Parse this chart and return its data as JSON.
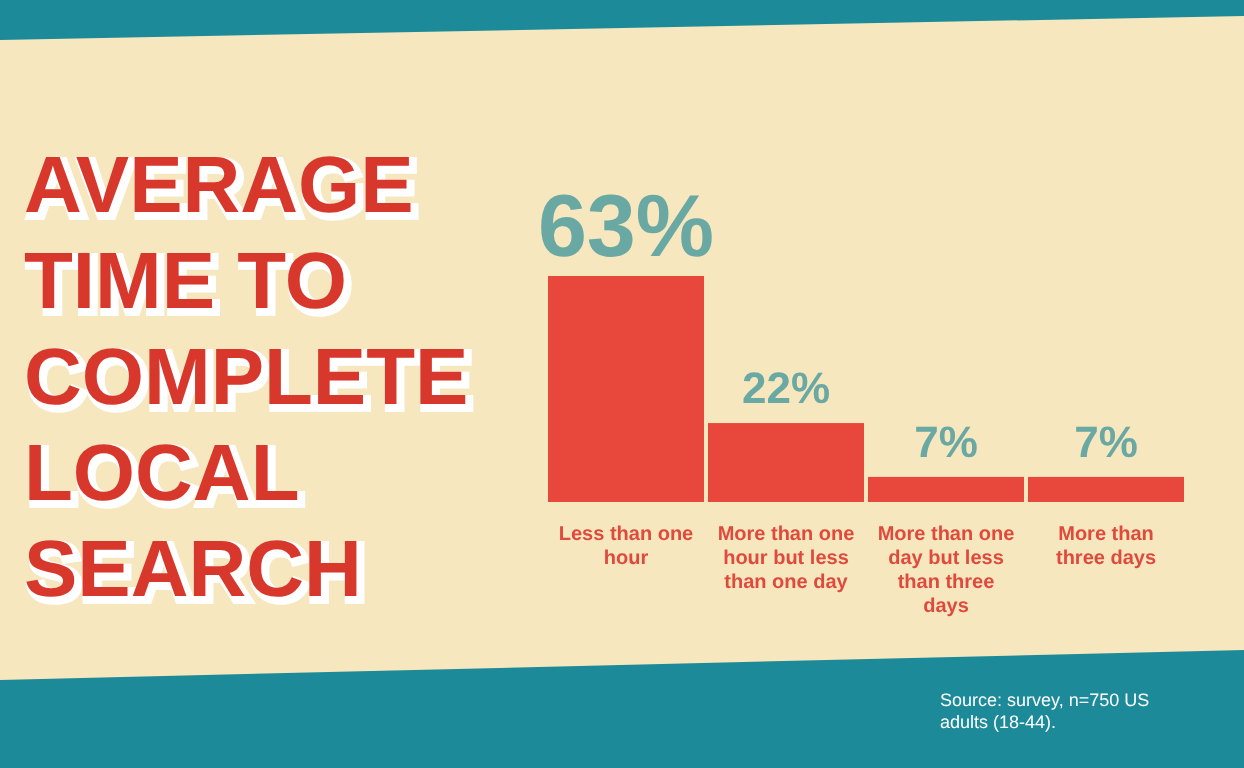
{
  "chart_data": {
    "type": "bar",
    "title": "AVERAGE TIME TO COMPLETE LOCAL SEARCH",
    "categories": [
      "Less than one hour",
      "More than one hour but less than one day",
      "More than one day but less than three days",
      "More than three days"
    ],
    "values": [
      63,
      22,
      7,
      7
    ],
    "value_labels": [
      "63%",
      "22%",
      "7%",
      "7%"
    ],
    "color": "#e8473b",
    "annotations": [
      "Source: survey, n=750 US adults (18-44)."
    ]
  }
}
